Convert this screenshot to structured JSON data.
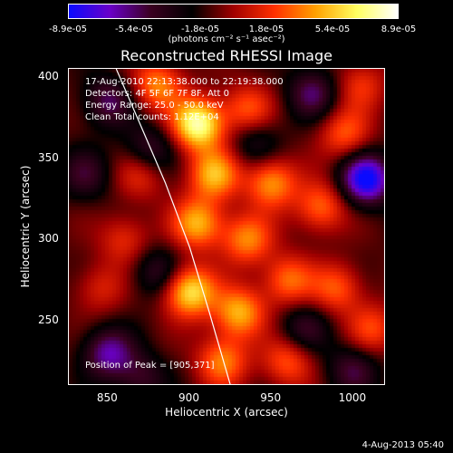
{
  "colorbar": {
    "ticks": [
      "-8.9e-05",
      "-5.4e-05",
      "-1.8e-05",
      "1.8e-05",
      "5.4e-05",
      "8.9e-05"
    ],
    "title": "(photons cm⁻² s⁻¹ asec⁻²)",
    "colors": [
      "#0a0aff",
      "#6a00c8",
      "#3a0020",
      "#000000",
      "#a00000",
      "#ff3000",
      "#ffa000",
      "#ffff60",
      "#ffffff"
    ]
  },
  "info": {
    "time": "17-Aug-2010 22:13:38.000 to 22:19:38.000",
    "detectors": "Detectors: 4F 5F 6F 7F 8F, Att 0",
    "energy": "Energy Range: 25.0 - 50.0 keV",
    "clean": "Clean     Total counts: 1.12E+04",
    "peak": "Position of Peak = [905,371]"
  },
  "timestamp": "4-Aug-2013 05:40",
  "chart_data": {
    "type": "heatmap",
    "title": "Reconstructed RHESSI Image",
    "xlabel": "Heliocentric X (arcsec)",
    "ylabel": "Heliocentric Y (arcsec)",
    "xlim": [
      826,
      1020
    ],
    "ylim": [
      210,
      405
    ],
    "x_ticks": [
      "850",
      "900",
      "950",
      "1000"
    ],
    "y_ticks": [
      "250",
      "300",
      "350",
      "400"
    ],
    "x_tick_values": [
      850,
      900,
      950,
      1000
    ],
    "y_tick_values": [
      250,
      300,
      350,
      400
    ],
    "colorbar_range": [
      -8.9e-05,
      8.9e-05
    ],
    "limb_curve": {
      "x": [
        855,
        870,
        885,
        900,
        912,
        925
      ],
      "y": [
        405,
        370,
        335,
        295,
        255,
        210
      ]
    },
    "peak": {
      "x": 905,
      "y": 371,
      "value": 8.9e-05
    },
    "sources": [
      {
        "x": 905,
        "y": 371,
        "value": 8.9e-05
      },
      {
        "x": 880,
        "y": 395,
        "value": 5e-05
      },
      {
        "x": 935,
        "y": 380,
        "value": 4e-05
      },
      {
        "x": 915,
        "y": 340,
        "value": 6e-05
      },
      {
        "x": 950,
        "y": 335,
        "value": 5.5e-05
      },
      {
        "x": 905,
        "y": 310,
        "value": 6e-05
      },
      {
        "x": 935,
        "y": 300,
        "value": 5e-05
      },
      {
        "x": 980,
        "y": 320,
        "value": 4.5e-05
      },
      {
        "x": 995,
        "y": 365,
        "value": 4e-05
      },
      {
        "x": 900,
        "y": 268,
        "value": 7.5e-05
      },
      {
        "x": 930,
        "y": 255,
        "value": 6e-05
      },
      {
        "x": 960,
        "y": 275,
        "value": 4.5e-05
      },
      {
        "x": 990,
        "y": 270,
        "value": 4e-05
      },
      {
        "x": 1012,
        "y": 245,
        "value": 3.5e-05
      },
      {
        "x": 920,
        "y": 225,
        "value": 5e-05
      },
      {
        "x": 960,
        "y": 225,
        "value": 4e-05
      },
      {
        "x": 860,
        "y": 300,
        "value": 3e-05
      },
      {
        "x": 845,
        "y": 270,
        "value": 2.5e-05
      },
      {
        "x": 870,
        "y": 340,
        "value": 3e-05
      },
      {
        "x": 1005,
        "y": 395,
        "value": 3e-05
      },
      {
        "x": 850,
        "y": 385,
        "value": -4e-05
      },
      {
        "x": 836,
        "y": 340,
        "value": -3e-05
      },
      {
        "x": 875,
        "y": 355,
        "value": -3.5e-05
      },
      {
        "x": 850,
        "y": 230,
        "value": -5e-05
      },
      {
        "x": 870,
        "y": 215,
        "value": -3e-05
      },
      {
        "x": 975,
        "y": 390,
        "value": -4e-05
      },
      {
        "x": 1008,
        "y": 337,
        "value": -8e-05
      },
      {
        "x": 970,
        "y": 245,
        "value": -3e-05
      },
      {
        "x": 880,
        "y": 280,
        "value": -3e-05
      },
      {
        "x": 1000,
        "y": 220,
        "value": -3.5e-05
      },
      {
        "x": 940,
        "y": 360,
        "value": -2.5e-05
      }
    ]
  }
}
